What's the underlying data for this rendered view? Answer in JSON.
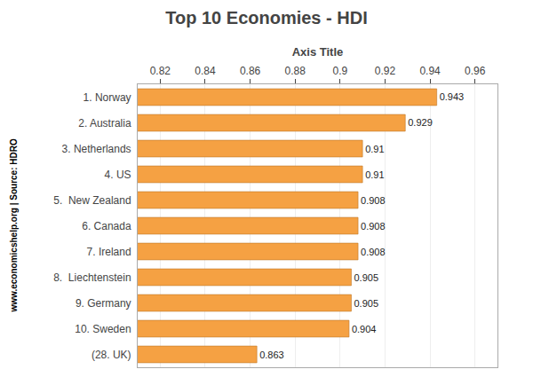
{
  "chart_data": {
    "type": "bar",
    "orientation": "horizontal",
    "title": "Top 10 Economies - HDI",
    "xlabel": "Axis Title",
    "annotations": [
      "www.economicshelp.org | Source: HDRO"
    ],
    "categories": [
      "(28. UK)",
      "10. Sweden",
      "9. Germany",
      "8.  Liechtenstein",
      "7. Ireland",
      "6. Canada",
      "5.  New Zealand",
      "4. US",
      "3. Netherlands",
      "2. Australia",
      "1. Norway"
    ],
    "values": [
      0.863,
      0.904,
      0.905,
      0.905,
      0.908,
      0.908,
      0.908,
      0.91,
      0.91,
      0.929,
      0.943
    ],
    "color": "#F5A143",
    "xlim": [
      0.81,
      0.97
    ],
    "xticks": [
      0.82,
      0.84,
      0.86,
      0.88,
      0.9,
      0.92,
      0.94,
      0.96
    ],
    "grid": true,
    "data_labels": true
  }
}
